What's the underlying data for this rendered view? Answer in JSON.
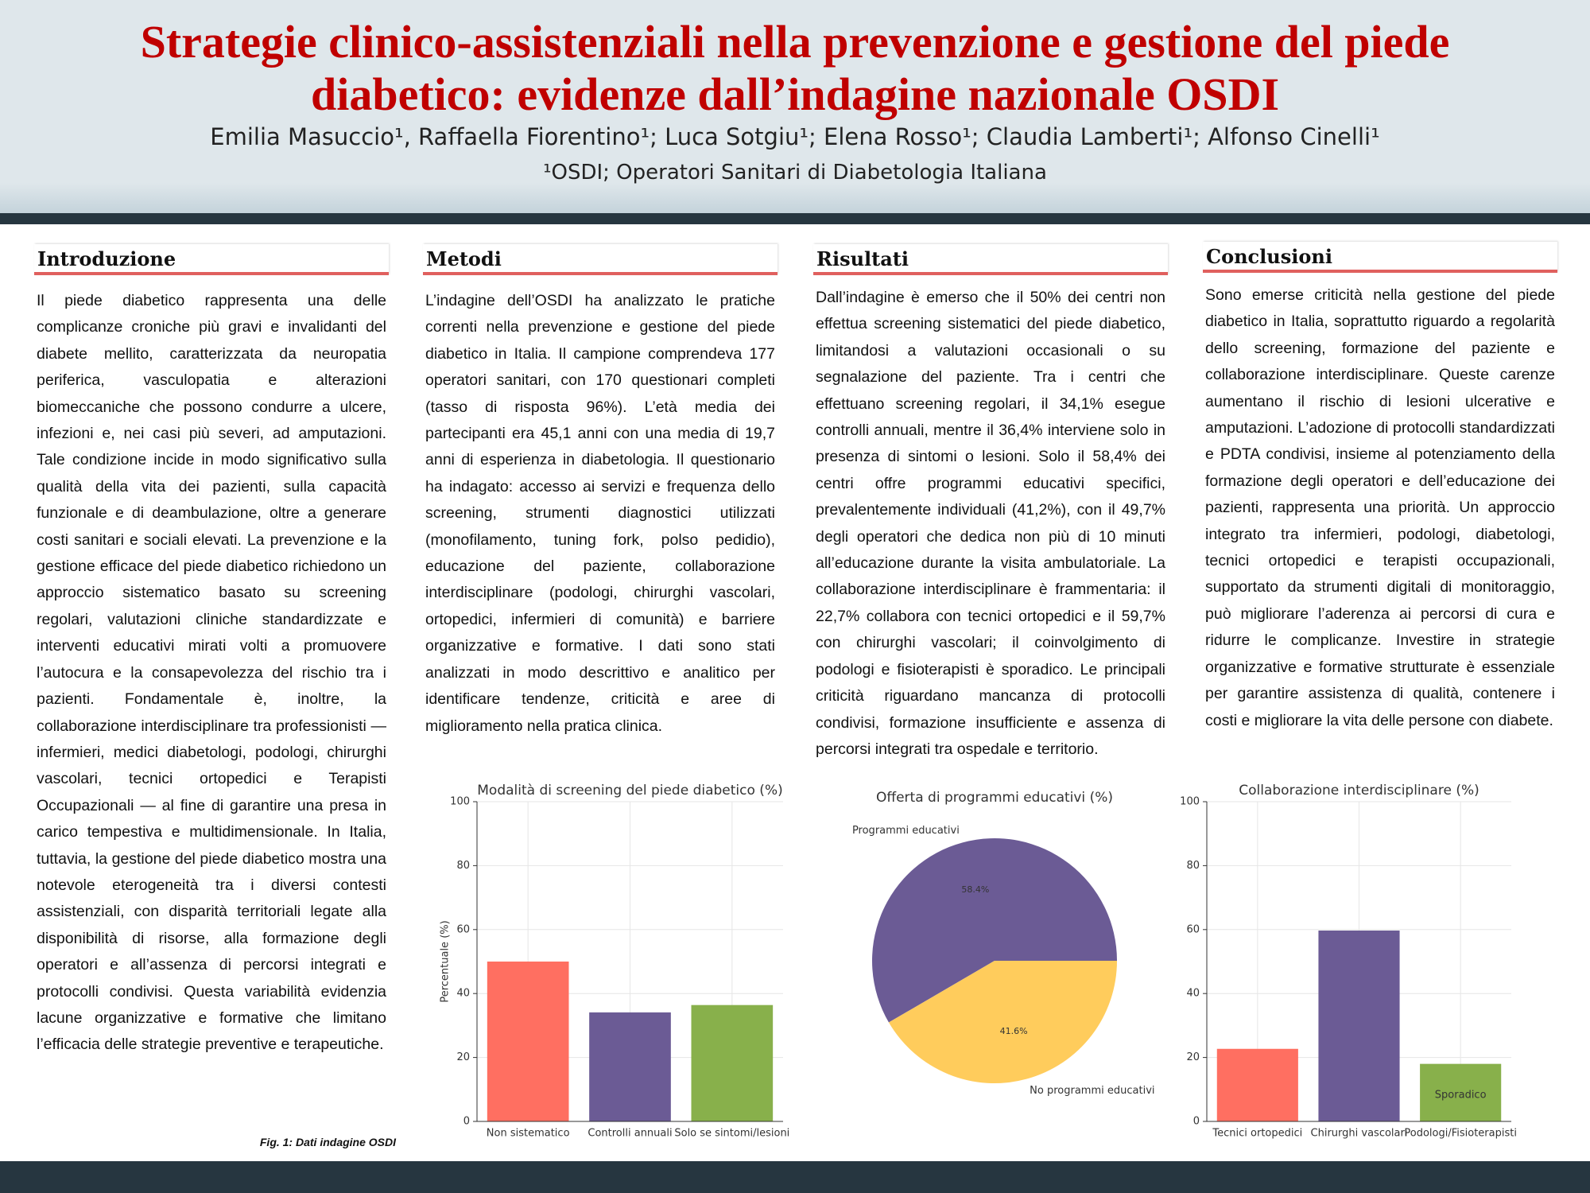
{
  "header": {
    "title": "Strategie clinico-assistenziali nella prevenzione e gestione del piede diabetico: evidenze dall’indagine nazionale OSDI",
    "authors": "Emilia Masuccio¹, Raffaella Fiorentino¹; Luca Sotgiu¹; Elena Rosso¹; Claudia Lamberti¹; Alfonso Cinelli¹",
    "affiliation": "¹OSDI; Operatori Sanitari di Diabetologia Italiana"
  },
  "sections": [
    {
      "heading": "Introduzione",
      "text": "Il piede diabetico rappresenta una delle complicanze croniche più gravi e invalidanti del diabete mellito, caratterizzata da neuropatia periferica, vasculopatia e alterazioni biomeccaniche che possono condurre a ulcere, infezioni e, nei casi più severi, ad amputazioni. Tale condizione incide in modo significativo sulla qualità della vita dei pazienti, sulla capacità funzionale e di deambulazione, oltre a generare costi sanitari e sociali elevati. La prevenzione e la gestione efficace del piede diabetico richiedono un approccio sistematico basato su screening regolari, valutazioni cliniche standardizzate e interventi educativi mirati volti a promuovere l’autocura e la consapevolezza del rischio tra i pazienti. Fondamentale è, inoltre, la collaborazione interdisciplinare tra professionisti — infermieri, medici diabetologi, podologi, chirurghi vascolari, tecnici ortopedici e Terapisti Occupazionali — al fine di garantire una presa in carico tempestiva e multidimensionale. In Italia, tuttavia, la gestione del piede diabetico mostra una notevole eterogeneità tra i diversi contesti assistenziali, con disparità territoriali legate alla disponibilità di risorse, alla formazione degli operatori e all’assenza di percorsi integrati e protocolli condivisi. Questa variabilità evidenzia lacune organizzative e formative che limitano l’efficacia delle strategie preventive e terapeutiche."
    },
    {
      "heading": "Metodi",
      "text": "L’indagine dell’OSDI ha analizzato le pratiche correnti nella prevenzione e gestione del piede diabetico in Italia. Il campione comprendeva 177 operatori sanitari, con 170 questionari completi (tasso di risposta 96%). L’età media dei partecipanti era 45,1 anni con una media  di 19,7 anni di esperienza in diabetologia. Il questionario ha indagato: accesso ai servizi e frequenza dello screening, strumenti diagnostici utilizzati (monofilamento, tuning fork, polso pedidio), educazione del paziente, collaborazione interdisciplinare (podologi, chirurghi vascolari, ortopedici, infermieri di comunità) e barriere organizzative e formative. I dati sono stati analizzati in modo descrittivo e analitico per identificare tendenze, criticità e aree di miglioramento nella pratica clinica."
    },
    {
      "heading": "Risultati",
      "text": "Dall’indagine è emerso che il 50% dei centri non effettua screening sistematici del piede diabetico, limitandosi a valutazioni occasionali o su segnalazione del paziente. Tra i centri che effettuano screening regolari, il 34,1% esegue controlli annuali, mentre il 36,4% interviene solo in presenza di sintomi o lesioni. Solo il 58,4% dei centri offre programmi educativi specifici, prevalentemente individuali (41,2%), con il 49,7% degli operatori che dedica non più di 10 minuti all’educazione durante la visita ambulatoriale. La collaborazione interdisciplinare è frammentaria: il 22,7% collabora con tecnici ortopedici e il 59,7% con chirurghi vascolari; il coinvolgimento di podologi e fisioterapisti è sporadico. Le principali criticità riguardano mancanza di protocolli condivisi, formazione insufficiente e assenza di percorsi integrati tra ospedale e territorio."
    },
    {
      "heading": "Conclusioni",
      "text": "Sono emerse criticità nella gestione del piede diabetico in Italia, soprattutto riguardo a regolarità dello screening, formazione del paziente e collaborazione interdisciplinare. Queste carenze aumentano il rischio di lesioni ulcerative e amputazioni. L’adozione di protocolli standardizzati e PDTA condivisi, insieme al potenziamento della formazione degli operatori e dell’educazione dei pazienti, rappresenta una priorità. Un approccio integrato tra infermieri, podologi, diabetologi, tecnici ortopedici e terapisti occupazionali, supportato da strumenti digitali di monitoraggio, può migliorare l’aderenza ai percorsi di cura e ridurre le complicanze. Investire in strategie organizzative e formative strutturate è essenziale per garantire assistenza di qualità, contenere i costi e migliorare la vita delle persone con diabete."
    }
  ],
  "figure_caption": "Fig. 1: Dati indagine OSDI",
  "chart_data": [
    {
      "type": "bar",
      "title": "Modalità di screening del piede diabetico (%)",
      "y_label": "Percentuale (%)",
      "categories": [
        "Non sistematico",
        "Controlli annuali",
        "Solo se sintomi/lesioni"
      ],
      "values": [
        50,
        34.1,
        36.4
      ],
      "colors": [
        "#ff6f61",
        "#6b5b95",
        "#88b04b"
      ],
      "ylim": [
        0,
        100
      ],
      "yticks": [
        0,
        20,
        40,
        60,
        80,
        100
      ],
      "grid": true
    },
    {
      "type": "pie",
      "title": "Offerta di programmi educativi (%)",
      "categories": [
        "Programmi educativi",
        "No programmi educativi"
      ],
      "values": [
        58.4,
        41.6
      ],
      "value_labels": [
        "58.4%",
        "41.6%"
      ],
      "colors": [
        "#6b5b95",
        "#ffcc5c"
      ]
    },
    {
      "type": "bar",
      "title": "Collaborazione interdisciplinare (%)",
      "categories": [
        "Tecnici ortopedici",
        "Chirurghi vascolari",
        "Podologi/Fisioterapisti"
      ],
      "values": [
        22.7,
        59.7,
        18
      ],
      "colors": [
        "#ff6f61",
        "#6b5b95",
        "#88b04b"
      ],
      "annotation": "Sporadico",
      "ylim": [
        0,
        100
      ],
      "yticks": [
        0,
        20,
        40,
        60,
        80,
        100
      ],
      "grid": true
    }
  ]
}
